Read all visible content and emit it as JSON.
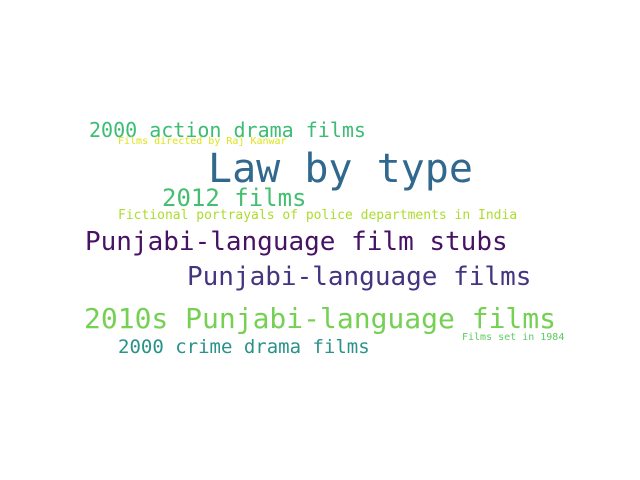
{
  "word_cloud": {
    "words": [
      {
        "text": "Law by type",
        "color": "#31688e"
      },
      {
        "text": "2000 action drama films",
        "color": "#3dbc74"
      },
      {
        "text": "Films directed by Raj Kanwar",
        "color": "#dde318"
      },
      {
        "text": "2012 films",
        "color": "#44bf70"
      },
      {
        "text": "Fictional portrayals of police departments in India",
        "color": "#addc30"
      },
      {
        "text": "Punjabi-language film stubs",
        "color": "#471164"
      },
      {
        "text": "Punjabi-language films",
        "color": "#453581"
      },
      {
        "text": "2010s Punjabi-language films",
        "color": "#75d054"
      },
      {
        "text": "2000 crime drama films",
        "color": "#2a9289"
      },
      {
        "text": "Films set in 1984",
        "color": "#5ec962"
      }
    ]
  }
}
